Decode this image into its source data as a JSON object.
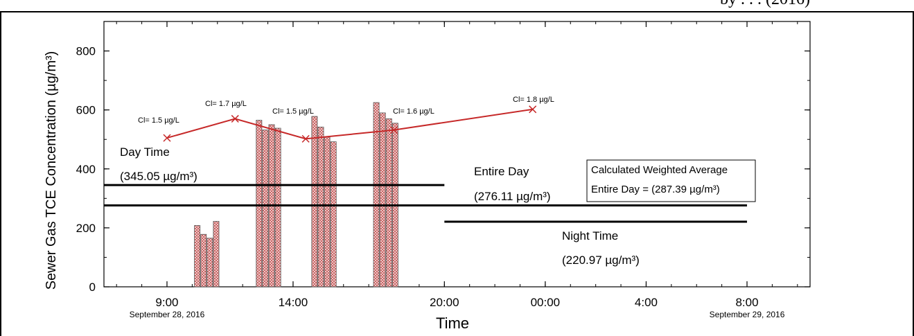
{
  "header": {
    "clipped_text": "by . . . (2016)"
  },
  "chart_data": {
    "type": "bar",
    "ylabel": "Sewer Gas TCE Concentration (µg/m³)",
    "xlabel": "Time",
    "ylim": [
      0,
      900
    ],
    "yticks": [
      0,
      200,
      400,
      600,
      800
    ],
    "xlim_hours": [
      6.5,
      34.5
    ],
    "xticks": [
      {
        "h": 9,
        "label": "9:00",
        "sub": "September 28, 2016"
      },
      {
        "h": 14,
        "label": "14:00",
        "sub": ""
      },
      {
        "h": 20,
        "label": "20:00",
        "sub": ""
      },
      {
        "h": 24,
        "label": "00:00",
        "sub": ""
      },
      {
        "h": 28,
        "label": "4:00",
        "sub": ""
      },
      {
        "h": 32,
        "label": "8:00",
        "sub": "September 29, 2016"
      }
    ],
    "bars": [
      {
        "x": 10.2,
        "value": 208
      },
      {
        "x": 10.45,
        "value": 178
      },
      {
        "x": 10.7,
        "value": 165
      },
      {
        "x": 10.95,
        "value": 222
      },
      {
        "x": 12.65,
        "value": 565
      },
      {
        "x": 12.9,
        "value": 532
      },
      {
        "x": 13.15,
        "value": 550
      },
      {
        "x": 13.4,
        "value": 538
      },
      {
        "x": 14.85,
        "value": 578
      },
      {
        "x": 15.1,
        "value": 542
      },
      {
        "x": 15.35,
        "value": 508
      },
      {
        "x": 15.6,
        "value": 492
      },
      {
        "x": 17.3,
        "value": 625
      },
      {
        "x": 17.55,
        "value": 590
      },
      {
        "x": 17.8,
        "value": 570
      },
      {
        "x": 18.05,
        "value": 555
      }
    ],
    "line_series": {
      "points": [
        {
          "x": 9.0,
          "y": 505,
          "label": "Cl= 1.5 µg/L"
        },
        {
          "x": 11.7,
          "y": 570,
          "label": "Cl= 1.7 µg/L"
        },
        {
          "x": 14.5,
          "y": 502,
          "label": "Cl= 1.5 µg/L"
        },
        {
          "x": 18.0,
          "y": 532,
          "label": "Cl= 1.6 µg/L"
        },
        {
          "x": 23.5,
          "y": 602,
          "label": "Cl= 1.8 µg/L"
        }
      ]
    },
    "reference_lines": [
      {
        "name": "Day Time",
        "value_text": "(345.05 µg/m³)",
        "y": 345.05,
        "x_from": 6.5,
        "x_to": 20.0
      },
      {
        "name": "Entire Day",
        "value_text": "(276.11 µg/m³)",
        "y": 276.11,
        "x_from": 6.5,
        "x_to": 32.0
      },
      {
        "name": "Night Time",
        "value_text": "(220.97 µg/m³)",
        "y": 220.97,
        "x_from": 20.0,
        "x_to": 32.0
      }
    ],
    "annotation_box": {
      "title": "Calculated Weighted Average",
      "text": "Entire Day = (287.39 µg/m³)"
    }
  }
}
